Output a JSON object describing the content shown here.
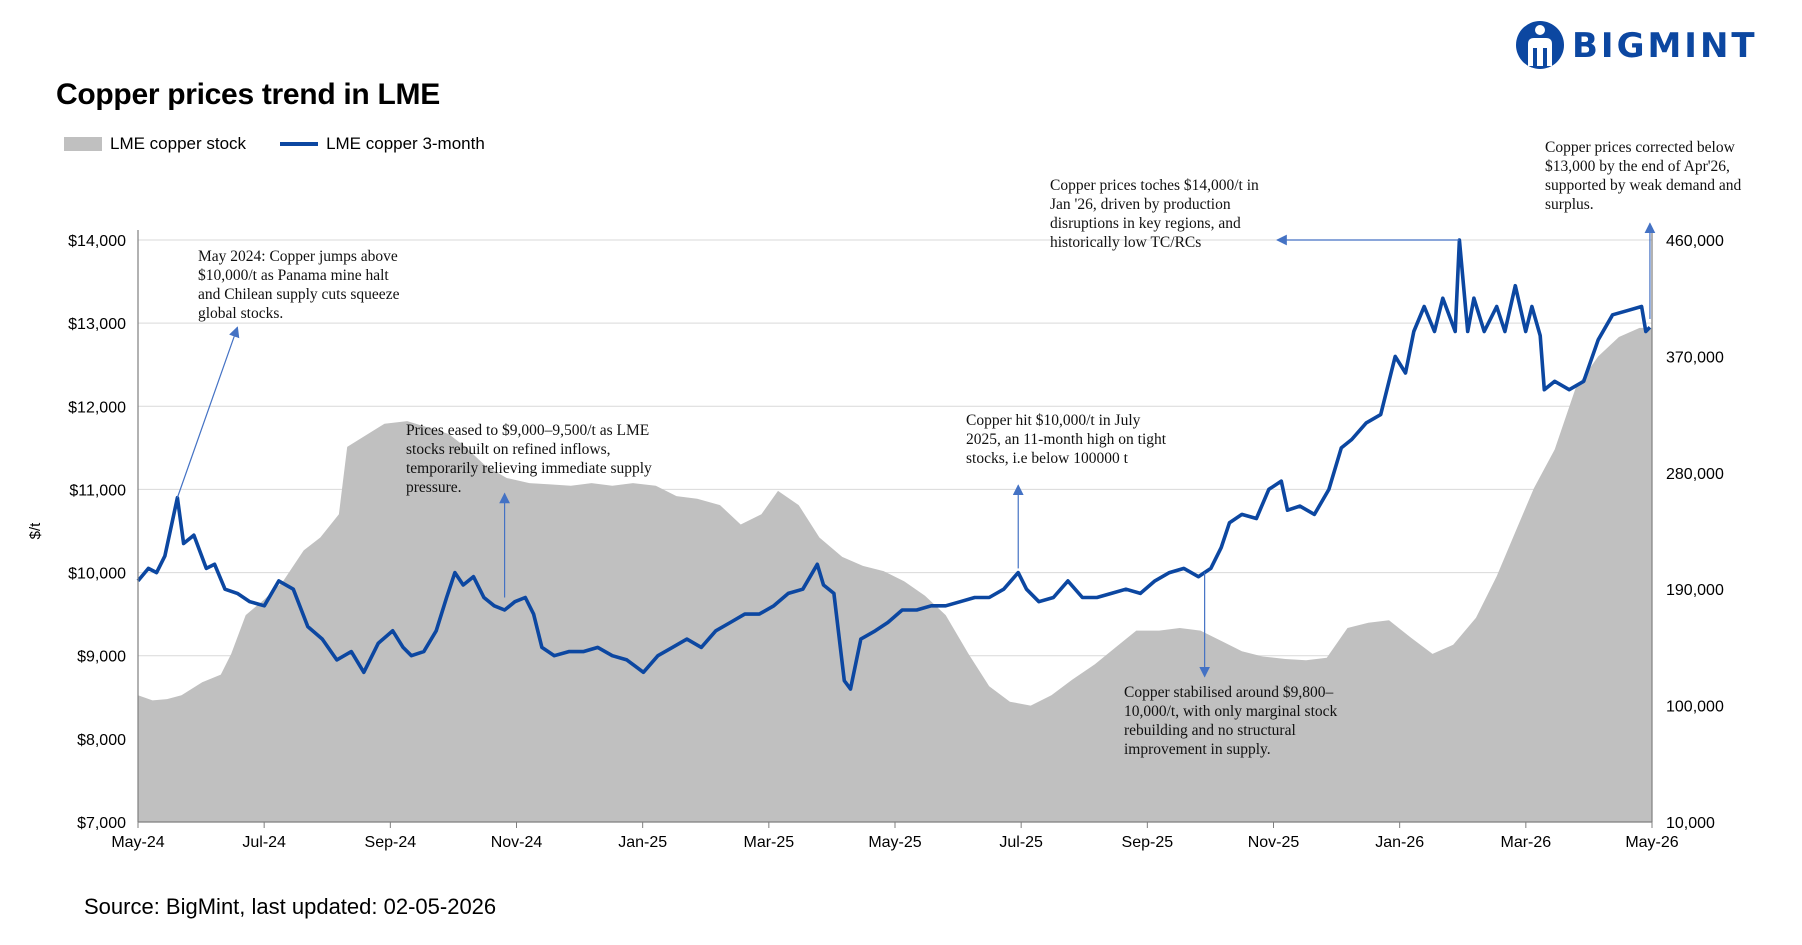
{
  "brand": {
    "name": "BIGMINT",
    "logo_icon": "bigmint-logo-icon",
    "color": "#0c47a1"
  },
  "chart_data": {
    "type": "line-area",
    "title": "Copper prices trend in LME",
    "ylabel": "$/t",
    "x_ticks": [
      "May-24",
      "Jul-24",
      "Sep-24",
      "Nov-24",
      "Jan-25",
      "Mar-25",
      "May-25",
      "Jul-25",
      "Sep-25",
      "Nov-25",
      "Jan-26",
      "Mar-26",
      "May-26"
    ],
    "x_range": [
      "2024-05-01",
      "2026-05-02"
    ],
    "y_left": {
      "min": 7000,
      "max": 14000,
      "ticks": [
        "$7,000",
        "$8,000",
        "$9,000",
        "$10,000",
        "$11,000",
        "$12,000",
        "$13,000",
        "$14,000"
      ]
    },
    "y_right": {
      "min": 10000,
      "max": 460000,
      "ticks": [
        "10,000",
        "100,000",
        "190,000",
        "280,000",
        "370,000",
        "460,000"
      ]
    },
    "grid": "horizontal",
    "legend_position": "top-left",
    "series": [
      {
        "name": "LME copper stock",
        "style": "area",
        "axis": "right",
        "color": "#c0c0c0",
        "points": [
          [
            "2024-05-01",
            108000
          ],
          [
            "2024-05-08",
            104000
          ],
          [
            "2024-05-15",
            105000
          ],
          [
            "2024-05-22",
            108000
          ],
          [
            "2024-06-01",
            118000
          ],
          [
            "2024-06-10",
            124000
          ],
          [
            "2024-06-15",
            140000
          ],
          [
            "2024-06-22",
            170000
          ],
          [
            "2024-07-01",
            182000
          ],
          [
            "2024-07-10",
            196000
          ],
          [
            "2024-07-20",
            220000
          ],
          [
            "2024-07-28",
            230000
          ],
          [
            "2024-08-06",
            248000
          ],
          [
            "2024-08-10",
            300000
          ],
          [
            "2024-08-20",
            310000
          ],
          [
            "2024-08-28",
            318000
          ],
          [
            "2024-09-08",
            320000
          ],
          [
            "2024-09-18",
            315000
          ],
          [
            "2024-09-28",
            310000
          ],
          [
            "2024-10-06",
            300000
          ],
          [
            "2024-10-16",
            285000
          ],
          [
            "2024-10-26",
            276000
          ],
          [
            "2024-11-06",
            272000
          ],
          [
            "2024-11-16",
            271000
          ],
          [
            "2024-11-26",
            270000
          ],
          [
            "2024-12-06",
            272000
          ],
          [
            "2024-12-16",
            270000
          ],
          [
            "2024-12-26",
            272000
          ],
          [
            "2025-01-06",
            270000
          ],
          [
            "2025-01-16",
            262000
          ],
          [
            "2025-01-26",
            260000
          ],
          [
            "2025-02-06",
            255000
          ],
          [
            "2025-02-16",
            240000
          ],
          [
            "2025-02-26",
            248000
          ],
          [
            "2025-03-06",
            266000
          ],
          [
            "2025-03-16",
            255000
          ],
          [
            "2025-03-26",
            230000
          ],
          [
            "2025-04-06",
            215000
          ],
          [
            "2025-04-16",
            208000
          ],
          [
            "2025-04-26",
            204000
          ],
          [
            "2025-05-06",
            196000
          ],
          [
            "2025-05-16",
            185000
          ],
          [
            "2025-05-26",
            170000
          ],
          [
            "2025-06-06",
            140000
          ],
          [
            "2025-06-16",
            115000
          ],
          [
            "2025-06-26",
            103000
          ],
          [
            "2025-07-06",
            100000
          ],
          [
            "2025-07-16",
            108000
          ],
          [
            "2025-07-26",
            120000
          ],
          [
            "2025-08-06",
            132000
          ],
          [
            "2025-08-16",
            145000
          ],
          [
            "2025-08-26",
            158000
          ],
          [
            "2025-09-06",
            158000
          ],
          [
            "2025-09-16",
            160000
          ],
          [
            "2025-09-26",
            158000
          ],
          [
            "2025-10-06",
            150000
          ],
          [
            "2025-10-16",
            142000
          ],
          [
            "2025-10-26",
            138000
          ],
          [
            "2025-11-06",
            136000
          ],
          [
            "2025-11-16",
            135000
          ],
          [
            "2025-11-26",
            137000
          ],
          [
            "2025-12-06",
            160000
          ],
          [
            "2025-12-16",
            164000
          ],
          [
            "2025-12-26",
            166000
          ],
          [
            "2026-01-06",
            152000
          ],
          [
            "2026-01-16",
            140000
          ],
          [
            "2026-01-26",
            147000
          ],
          [
            "2026-02-06",
            168000
          ],
          [
            "2026-02-16",
            200000
          ],
          [
            "2026-02-26",
            238000
          ],
          [
            "2026-03-06",
            268000
          ],
          [
            "2026-03-16",
            298000
          ],
          [
            "2026-03-26",
            345000
          ],
          [
            "2026-04-06",
            370000
          ],
          [
            "2026-04-16",
            385000
          ],
          [
            "2026-04-26",
            392000
          ],
          [
            "2026-05-02",
            392000
          ]
        ]
      },
      {
        "name": "LME copper 3-month",
        "style": "line",
        "axis": "left",
        "color": "#0c47a1",
        "points": [
          [
            "2024-05-01",
            9900
          ],
          [
            "2024-05-06",
            10050
          ],
          [
            "2024-05-10",
            10000
          ],
          [
            "2024-05-14",
            10200
          ],
          [
            "2024-05-20",
            10900
          ],
          [
            "2024-05-23",
            10350
          ],
          [
            "2024-05-28",
            10450
          ],
          [
            "2024-06-03",
            10050
          ],
          [
            "2024-06-07",
            10100
          ],
          [
            "2024-06-12",
            9800
          ],
          [
            "2024-06-18",
            9750
          ],
          [
            "2024-06-24",
            9650
          ],
          [
            "2024-07-01",
            9600
          ],
          [
            "2024-07-08",
            9900
          ],
          [
            "2024-07-15",
            9800
          ],
          [
            "2024-07-22",
            9350
          ],
          [
            "2024-07-29",
            9200
          ],
          [
            "2024-08-05",
            8950
          ],
          [
            "2024-08-12",
            9050
          ],
          [
            "2024-08-18",
            8800
          ],
          [
            "2024-08-25",
            9150
          ],
          [
            "2024-09-01",
            9300
          ],
          [
            "2024-09-06",
            9100
          ],
          [
            "2024-09-10",
            9000
          ],
          [
            "2024-09-16",
            9050
          ],
          [
            "2024-09-22",
            9300
          ],
          [
            "2024-09-27",
            9700
          ],
          [
            "2024-10-01",
            10000
          ],
          [
            "2024-10-05",
            9850
          ],
          [
            "2024-10-10",
            9950
          ],
          [
            "2024-10-15",
            9700
          ],
          [
            "2024-10-20",
            9600
          ],
          [
            "2024-10-25",
            9550
          ],
          [
            "2024-10-30",
            9650
          ],
          [
            "2024-11-04",
            9700
          ],
          [
            "2024-11-08",
            9500
          ],
          [
            "2024-11-12",
            9100
          ],
          [
            "2024-11-18",
            9000
          ],
          [
            "2024-11-25",
            9050
          ],
          [
            "2024-12-02",
            9050
          ],
          [
            "2024-12-09",
            9100
          ],
          [
            "2024-12-16",
            9000
          ],
          [
            "2024-12-23",
            8950
          ],
          [
            "2024-12-31",
            8800
          ],
          [
            "2025-01-07",
            9000
          ],
          [
            "2025-01-14",
            9100
          ],
          [
            "2025-01-21",
            9200
          ],
          [
            "2025-01-28",
            9100
          ],
          [
            "2025-02-04",
            9300
          ],
          [
            "2025-02-11",
            9400
          ],
          [
            "2025-02-18",
            9500
          ],
          [
            "2025-02-25",
            9500
          ],
          [
            "2025-03-04",
            9600
          ],
          [
            "2025-03-11",
            9750
          ],
          [
            "2025-03-18",
            9800
          ],
          [
            "2025-03-25",
            10100
          ],
          [
            "2025-03-28",
            9850
          ],
          [
            "2025-04-02",
            9750
          ],
          [
            "2025-04-07",
            8700
          ],
          [
            "2025-04-10",
            8600
          ],
          [
            "2025-04-15",
            9200
          ],
          [
            "2025-04-22",
            9300
          ],
          [
            "2025-04-28",
            9400
          ],
          [
            "2025-05-05",
            9550
          ],
          [
            "2025-05-12",
            9550
          ],
          [
            "2025-05-19",
            9600
          ],
          [
            "2025-05-26",
            9600
          ],
          [
            "2025-06-02",
            9650
          ],
          [
            "2025-06-09",
            9700
          ],
          [
            "2025-06-16",
            9700
          ],
          [
            "2025-06-23",
            9800
          ],
          [
            "2025-06-30",
            10000
          ],
          [
            "2025-07-04",
            9800
          ],
          [
            "2025-07-10",
            9650
          ],
          [
            "2025-07-17",
            9700
          ],
          [
            "2025-07-24",
            9900
          ],
          [
            "2025-07-31",
            9700
          ],
          [
            "2025-08-07",
            9700
          ],
          [
            "2025-08-14",
            9750
          ],
          [
            "2025-08-21",
            9800
          ],
          [
            "2025-08-28",
            9750
          ],
          [
            "2025-09-04",
            9900
          ],
          [
            "2025-09-11",
            10000
          ],
          [
            "2025-09-18",
            10050
          ],
          [
            "2025-09-25",
            9950
          ],
          [
            "2025-10-01",
            10050
          ],
          [
            "2025-10-06",
            10300
          ],
          [
            "2025-10-10",
            10600
          ],
          [
            "2025-10-16",
            10700
          ],
          [
            "2025-10-23",
            10650
          ],
          [
            "2025-10-29",
            11000
          ],
          [
            "2025-11-04",
            11100
          ],
          [
            "2025-11-07",
            10750
          ],
          [
            "2025-11-13",
            10800
          ],
          [
            "2025-11-20",
            10700
          ],
          [
            "2025-11-27",
            11000
          ],
          [
            "2025-12-03",
            11500
          ],
          [
            "2025-12-08",
            11600
          ],
          [
            "2025-12-15",
            11800
          ],
          [
            "2025-12-22",
            11900
          ],
          [
            "2025-12-29",
            12600
          ],
          [
            "2026-01-03",
            12400
          ],
          [
            "2026-01-07",
            12900
          ],
          [
            "2026-01-12",
            13200
          ],
          [
            "2026-01-17",
            12900
          ],
          [
            "2026-01-21",
            13300
          ],
          [
            "2026-01-27",
            12900
          ],
          [
            "2026-01-29",
            14000
          ],
          [
            "2026-02-02",
            12900
          ],
          [
            "2026-02-05",
            13300
          ],
          [
            "2026-02-10",
            12900
          ],
          [
            "2026-02-16",
            13200
          ],
          [
            "2026-02-20",
            12900
          ],
          [
            "2026-02-25",
            13450
          ],
          [
            "2026-03-02",
            12900
          ],
          [
            "2026-03-05",
            13200
          ],
          [
            "2026-03-09",
            12850
          ],
          [
            "2026-03-11",
            12200
          ],
          [
            "2026-03-16",
            12300
          ],
          [
            "2026-03-23",
            12200
          ],
          [
            "2026-03-30",
            12300
          ],
          [
            "2026-04-06",
            12800
          ],
          [
            "2026-04-13",
            13100
          ],
          [
            "2026-04-20",
            13150
          ],
          [
            "2026-04-27",
            13200
          ],
          [
            "2026-04-29",
            12900
          ],
          [
            "2026-05-01",
            12950
          ]
        ]
      }
    ],
    "annotations": [
      {
        "id": "may24",
        "text": "May 2024: Copper jumps above\n$10,000/t as Panama mine halt\nand Chilean supply cuts squeeze\nglobal stocks.",
        "arrow_from": [
          "2024-05-20",
          10900
        ],
        "arrow_to": [
          "2024-06-18",
          12950
        ]
      },
      {
        "id": "oct24",
        "text": "Prices eased to $9,000–9,500/t as LME\nstocks rebuilt on refined inflows,\ntemporarily relieving immediate supply\npressure.",
        "arrow_from": [
          "2024-10-25",
          9700
        ],
        "arrow_to": [
          "2024-10-25",
          10950
        ]
      },
      {
        "id": "jul25",
        "text": "Copper hit $10,000/t in July\n2025, an 11-month high on tight\nstocks, i.e below 100000 t",
        "arrow_from": [
          "2025-06-30",
          10050
        ],
        "arrow_to": [
          "2025-06-30",
          11050
        ]
      },
      {
        "id": "sep25",
        "text": "Copper stabilised around $9,800–\n10,000/t, with only marginal stock\nrebuilding and no structural\nimprovement in supply.",
        "arrow_from": [
          "2025-09-28",
          10000
        ],
        "arrow_to": [
          "2025-09-28",
          8750
        ]
      },
      {
        "id": "jan26",
        "text": "Copper prices toches $14,000/t in\nJan '26, driven by production\ndisruptions in key regions, and\nhistorically low TC/RCs",
        "arrow_from": [
          "2026-01-29",
          14000
        ],
        "arrow_to": [
          "2025-11-02",
          14000
        ]
      },
      {
        "id": "apr26",
        "text": "Copper prices corrected below\n$13,000 by the end of Apr'26,\nsupported by weak demand and\nsurplus.",
        "arrow_from": [
          "2026-05-01",
          13050
        ],
        "arrow_to": [
          "2026-05-01",
          14200
        ]
      }
    ]
  },
  "source_text": "Source: BigMint, last updated: 02-05-2026"
}
